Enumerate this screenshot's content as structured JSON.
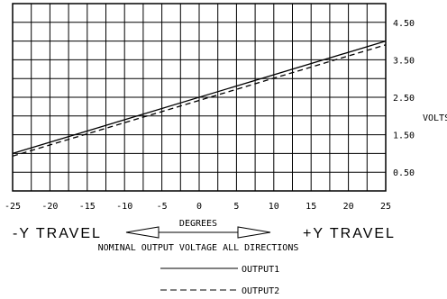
{
  "chart_data": {
    "type": "line",
    "title": "NOMINAL OUTPUT VOLTAGE ALL DIRECTIONS",
    "xlabel": "DEGREES",
    "ylabel": "VOLTS",
    "xlim": [
      -25,
      25
    ],
    "ylim": [
      0,
      5
    ],
    "x_ticks": [
      "-25",
      "-20",
      "-15",
      "-10",
      "-5",
      "0",
      "5",
      "10",
      "15",
      "20",
      "25"
    ],
    "y_ticks": [
      "4.50",
      "3.50",
      "2.50",
      "1.50",
      "0.50"
    ],
    "y_tick_values": [
      4.5,
      3.5,
      2.5,
      1.5,
      0.5
    ],
    "grid": true,
    "series": [
      {
        "name": "OUTPUT1",
        "style": "solid",
        "x": [
          -25,
          25
        ],
        "y": [
          1.0,
          4.0
        ]
      },
      {
        "name": "OUTPUT2",
        "style": "dashed",
        "x": [
          -25,
          25
        ],
        "y": [
          0.93,
          3.9
        ]
      }
    ],
    "annotations": {
      "left_travel": "-Y TRAVEL",
      "right_travel": "+Y TRAVEL",
      "volts_label": "VOLTS"
    },
    "legend": {
      "placement": "bottom-right",
      "entries": [
        "OUTPUT1",
        "OUTPUT2"
      ]
    }
  }
}
